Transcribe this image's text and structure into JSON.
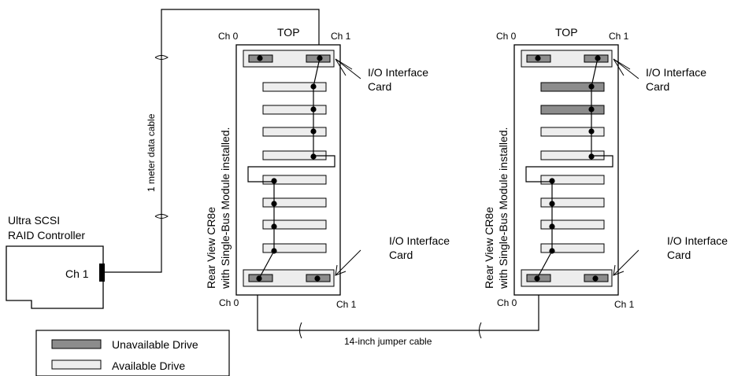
{
  "controller": {
    "title_line1": "Ultra SCSI",
    "title_line2": "RAID Controller",
    "channel": "Ch 1"
  },
  "data_cable_label": "1 meter data cable",
  "jumper_cable_label": "14-inch jumper cable",
  "enclosures": [
    {
      "top_label": "TOP",
      "top_left_channel": "Ch 0",
      "top_right_channel": "Ch 1",
      "bottom_left_channel": "Ch 0",
      "bottom_right_channel": "Ch 1",
      "side_label_line1": "Rear View CR8e",
      "side_label_line2": "with Single-Bus Module installed.",
      "io_card_top_line1": "I/O Interface",
      "io_card_top_line2": "Card",
      "io_card_bottom_line1": "I/O Interface",
      "io_card_bottom_line2": "Card",
      "drives": [
        "available",
        "available",
        "available",
        "available",
        "available",
        "available",
        "available",
        "available"
      ]
    },
    {
      "top_label": "TOP",
      "top_left_channel": "Ch 0",
      "top_right_channel": "Ch 1",
      "bottom_left_channel": "Ch 0",
      "bottom_right_channel": "Ch 1",
      "side_label_line1": "Rear View CR8e",
      "side_label_line2": "with Single-Bus Module installed.",
      "io_card_top_line1": "I/O Interface",
      "io_card_top_line2": "Card",
      "io_card_bottom_line1": "I/O Interface",
      "io_card_bottom_line2": "Card",
      "drives": [
        "unavailable",
        "unavailable",
        "available",
        "available",
        "available",
        "available",
        "available",
        "available"
      ]
    }
  ],
  "legend": {
    "unavailable_label": "Unavailable Drive",
    "available_label": "Available Drive"
  },
  "colors": {
    "unavailable": "#8c8c8c",
    "available": "#ededed",
    "card": "#ededed",
    "connector": "#8c8c8c"
  }
}
